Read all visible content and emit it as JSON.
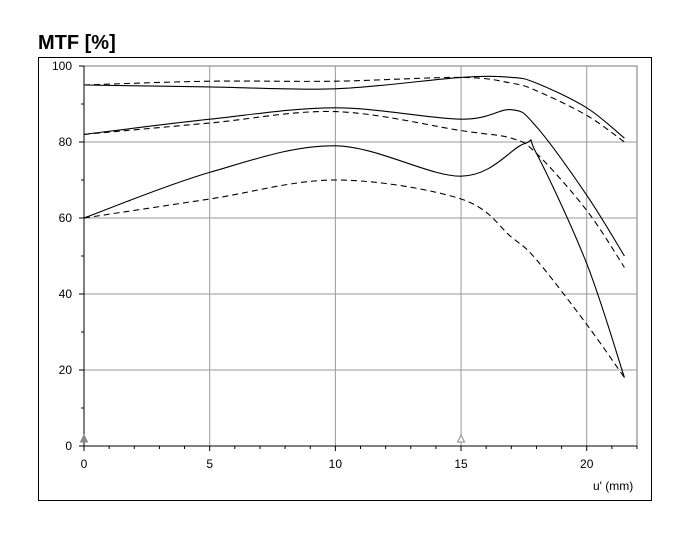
{
  "chart_data": {
    "type": "line",
    "title": "MTF [%]",
    "xlabel": "u' (mm)",
    "ylabel": "",
    "xlim": [
      0,
      22
    ],
    "ylim": [
      0,
      100
    ],
    "x_ticks": [
      0,
      5,
      10,
      15,
      20
    ],
    "y_ticks": [
      0,
      20,
      40,
      60,
      80,
      100
    ],
    "grid": true,
    "markers": [
      {
        "x": 0,
        "style": "filled-triangle"
      },
      {
        "x": 15,
        "style": "open-triangle"
      }
    ],
    "series": [
      {
        "style": "solid",
        "points": [
          [
            0,
            95
          ],
          [
            5,
            94.5
          ],
          [
            10,
            94
          ],
          [
            15,
            97
          ],
          [
            17,
            97
          ],
          [
            18,
            95.5
          ],
          [
            20,
            89
          ],
          [
            21.5,
            81
          ]
        ]
      },
      {
        "style": "dashed",
        "points": [
          [
            0,
            95
          ],
          [
            5,
            96
          ],
          [
            10,
            96
          ],
          [
            15,
            97
          ],
          [
            17,
            95.5
          ],
          [
            18,
            93.5
          ],
          [
            20,
            87
          ],
          [
            21.5,
            80
          ]
        ]
      },
      {
        "style": "solid",
        "points": [
          [
            0,
            82
          ],
          [
            5,
            86
          ],
          [
            10,
            89
          ],
          [
            15,
            86
          ],
          [
            17,
            88.5
          ],
          [
            18,
            84
          ],
          [
            20,
            66
          ],
          [
            21.5,
            50
          ]
        ]
      },
      {
        "style": "dashed",
        "points": [
          [
            0,
            82
          ],
          [
            5,
            85
          ],
          [
            10,
            88
          ],
          [
            15,
            83
          ],
          [
            17,
            81
          ],
          [
            18,
            77
          ],
          [
            20,
            62
          ],
          [
            21.5,
            47
          ]
        ]
      },
      {
        "style": "solid",
        "points": [
          [
            0,
            60
          ],
          [
            5,
            72
          ],
          [
            10,
            79
          ],
          [
            15,
            71
          ],
          [
            17.5,
            79.5
          ],
          [
            18,
            77
          ],
          [
            20,
            48
          ],
          [
            21.5,
            18
          ]
        ]
      },
      {
        "style": "dashed",
        "points": [
          [
            0,
            60
          ],
          [
            5,
            65
          ],
          [
            10,
            70
          ],
          [
            15,
            65
          ],
          [
            17,
            55
          ],
          [
            18,
            49
          ],
          [
            20,
            32
          ],
          [
            21.5,
            18
          ]
        ]
      }
    ]
  }
}
